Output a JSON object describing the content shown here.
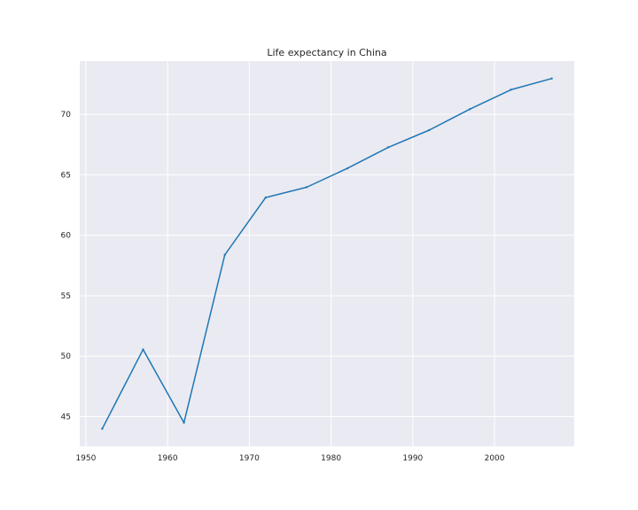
{
  "chart_data": {
    "type": "line",
    "title": "Life expectancy in China",
    "xlabel": "",
    "ylabel": "",
    "x": [
      1952,
      1957,
      1962,
      1967,
      1972,
      1977,
      1982,
      1987,
      1992,
      1997,
      2002,
      2007
    ],
    "series": [
      {
        "values": [
          44.0,
          50.55,
          44.5,
          58.38,
          63.12,
          63.97,
          65.53,
          67.27,
          68.69,
          70.43,
          72.03,
          72.96
        ]
      }
    ],
    "xlim": [
      1949.25,
      2009.75
    ],
    "ylim": [
      42.55,
      74.4
    ],
    "x_ticks": [
      1950,
      1960,
      1970,
      1980,
      1990,
      2000
    ],
    "y_ticks": [
      45,
      50,
      55,
      60,
      65,
      70
    ],
    "grid": true,
    "colors": {
      "background": "#eaeaf2",
      "grid": "#ffffff",
      "line": "#1f77b4",
      "text": "#262626"
    }
  }
}
